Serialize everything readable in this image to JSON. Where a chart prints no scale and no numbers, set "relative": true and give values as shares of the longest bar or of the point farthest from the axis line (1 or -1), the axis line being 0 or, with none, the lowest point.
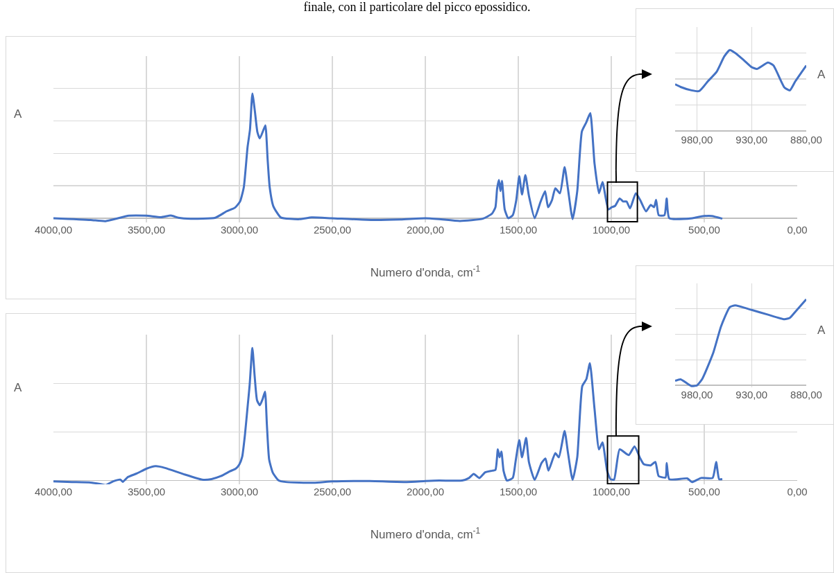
{
  "chart_data": [
    {
      "type": "line",
      "annotations": [
        "finale, con il particolare del picco epossidico."
      ],
      "xlabel": "Numero d'onda, cm$^{-1}$",
      "ylabel": "A",
      "xlim": [
        4000,
        0
      ],
      "xticks": [
        {
          "value": 4000,
          "label": "4000,00"
        },
        {
          "value": 3500,
          "label": "3500,00"
        },
        {
          "value": 3000,
          "label": "3000,00"
        },
        {
          "value": 2500,
          "label": "2500,00"
        },
        {
          "value": 2000,
          "label": "2000,00"
        },
        {
          "value": 1500,
          "label": "1500,00"
        },
        {
          "value": 1000,
          "label": "1000,00"
        },
        {
          "value": 500,
          "label": "500,00"
        },
        {
          "value": 0,
          "label": "0,00"
        }
      ],
      "grid": true,
      "relative": true,
      "tick_labels": "x",
      "x": [
        4000,
        3800,
        3720,
        3594,
        3500,
        3421,
        3368,
        3328,
        3262,
        3129,
        3069,
        3023,
        2996,
        2976,
        2956,
        2943,
        2930,
        2916,
        2903,
        2890,
        2870,
        2860,
        2848,
        2837,
        2817,
        2777,
        2677,
        2611,
        2505,
        2292,
        2133,
        2000,
        1926,
        1814,
        1691,
        1641,
        1623,
        1614,
        1604,
        1596,
        1588,
        1573,
        1554,
        1530,
        1511,
        1495,
        1480,
        1462,
        1443,
        1412,
        1381,
        1356,
        1340,
        1319,
        1301,
        1276,
        1251,
        1233,
        1208,
        1183,
        1158,
        1134,
        1113,
        1090,
        1066,
        1047,
        1016,
        998,
        980,
        955,
        936,
        918,
        899,
        868,
        844,
        813,
        788,
        770,
        759,
        745,
        714,
        702,
        688,
        564,
        515,
        460,
        403
      ],
      "series": [
        {
          "color": "#4472c4",
          "values": [
            0,
            -0.014,
            -0.024,
            0.02,
            0.02,
            0.008,
            0.022,
            0.004,
            -0.004,
            0.004,
            0.055,
            0.085,
            0.135,
            0.25,
            0.57,
            0.71,
            1,
            0.85,
            0.69,
            0.64,
            0.71,
            0.745,
            0.47,
            0.25,
            0.095,
            0.006,
            -0.008,
            0.006,
            0,
            -0.014,
            -0.01,
            0,
            -0.007,
            -0.022,
            -0.004,
            0.037,
            0.088,
            0.236,
            0.306,
            0.217,
            0.3,
            0.07,
            0,
            0.024,
            0.144,
            0.337,
            0.19,
            0.346,
            0.18,
            0,
            0.129,
            0.217,
            0.088,
            0.144,
            0.24,
            0.2,
            0.41,
            0.236,
            -0.007,
            0.217,
            0.696,
            0.77,
            0.843,
            0.438,
            0.2,
            0.29,
            0.07,
            0.088,
            0.098,
            0.158,
            0.134,
            0.134,
            0.079,
            0.2,
            0.144,
            0.055,
            0.107,
            0.088,
            0.147,
            0.024,
            0.024,
            0.158,
            0,
            0,
            0.015,
            0.018,
            -0.004
          ]
        }
      ]
    },
    {
      "type": "line",
      "ylabel": "A",
      "xlim": [
        1000,
        880
      ],
      "xticks": [
        {
          "value": 980,
          "label": "980,00"
        },
        {
          "value": 930,
          "label": "930,00"
        },
        {
          "value": 880,
          "label": "880,00"
        }
      ],
      "grid": true,
      "relative": true,
      "tick_labels": "x",
      "x": [
        1000,
        995,
        985,
        978,
        970,
        962,
        955,
        950,
        945,
        937,
        930,
        925,
        915,
        910,
        900,
        895,
        890,
        880
      ],
      "series": [
        {
          "color": "#4472c4",
          "values": [
            0.578,
            0.545,
            0.503,
            0.494,
            0.615,
            0.732,
            0.922,
            1,
            0.964,
            0.874,
            0.79,
            0.768,
            0.846,
            0.81,
            0.539,
            0.503,
            0.615,
            0.81
          ]
        }
      ]
    },
    {
      "type": "line",
      "xlabel": "Numero d'onda, cm$^{-1}$",
      "ylabel": "A",
      "xlim": [
        4000,
        0
      ],
      "xticks": [
        {
          "value": 4000,
          "label": "4000,00"
        },
        {
          "value": 3500,
          "label": "3500,00"
        },
        {
          "value": 3000,
          "label": "3000,00"
        },
        {
          "value": 2500,
          "label": "2500,00"
        },
        {
          "value": 2000,
          "label": "2000,00"
        },
        {
          "value": 1500,
          "label": "1500,00"
        },
        {
          "value": 1000,
          "label": "1000,00"
        },
        {
          "value": 500,
          "label": "500,00"
        },
        {
          "value": 0,
          "label": "0,00"
        }
      ],
      "grid": true,
      "relative": true,
      "tick_labels": "x",
      "x": [
        4000,
        3900,
        3800,
        3750,
        3720,
        3680,
        3640,
        3627,
        3600,
        3550,
        3500,
        3450,
        3400,
        3300,
        3200,
        3150,
        3100,
        3050,
        3020,
        3000,
        2985,
        2970,
        2955,
        2945,
        2930,
        2918,
        2905,
        2890,
        2875,
        2862,
        2852,
        2840,
        2820,
        2790,
        2750,
        2600,
        2500,
        2300,
        2100,
        2000,
        1926,
        1802,
        1765,
        1740,
        1709,
        1678,
        1641,
        1623,
        1610,
        1601,
        1591,
        1579,
        1561,
        1530,
        1515,
        1495,
        1480,
        1458,
        1443,
        1412,
        1375,
        1354,
        1338,
        1301,
        1282,
        1251,
        1233,
        1208,
        1183,
        1156,
        1134,
        1115,
        1090,
        1066,
        1047,
        1022,
        1004,
        985,
        955,
        906,
        875,
        844,
        825,
        788,
        763,
        745,
        708,
        702,
        688,
        591,
        566,
        517,
        455,
        436,
        420,
        403
      ],
      "series": [
        {
          "color": "#4472c4",
          "values": [
            -0.007,
            -0.011,
            -0.015,
            -0.026,
            -0.035,
            -0.007,
            0.007,
            -0.01,
            0.026,
            0.054,
            0.089,
            0.108,
            0.095,
            0.048,
            0.007,
            0.011,
            0.033,
            0.07,
            0.089,
            0.122,
            0.178,
            0.345,
            0.568,
            0.716,
            1,
            0.79,
            0.605,
            0.568,
            0.614,
            0.67,
            0.42,
            0.16,
            0.058,
            0.002,
            -0.011,
            -0.017,
            -0.007,
            -0.004,
            -0.011,
            -0.004,
            0,
            0,
            0.019,
            0.05,
            0.019,
            0.062,
            0.074,
            0.08,
            0.235,
            0.175,
            0.218,
            0.071,
            0,
            0.019,
            0.14,
            0.305,
            0.175,
            0.322,
            0.14,
            0.005,
            0.132,
            0.166,
            0.074,
            0.206,
            0.175,
            0.374,
            0.21,
            0.005,
            0.175,
            0.712,
            0.764,
            0.885,
            0.539,
            0.235,
            0.287,
            0.071,
            0.01,
            0.007,
            0.235,
            0.192,
            0.258,
            0.166,
            0.123,
            0.114,
            0.14,
            0.033,
            0.023,
            0.132,
            0.01,
            0.016,
            -0.012,
            0.019,
            0.019,
            0.14,
            0.01,
            0.01
          ]
        }
      ]
    },
    {
      "type": "line",
      "ylabel": "A",
      "xlim": [
        1000,
        880
      ],
      "xticks": [
        {
          "value": 980,
          "label": "980,00"
        },
        {
          "value": 930,
          "label": "930,00"
        },
        {
          "value": 880,
          "label": "880,00"
        }
      ],
      "grid": true,
      "relative": true,
      "tick_labels": "x",
      "x": [
        1000,
        995,
        985,
        980,
        975,
        965,
        958,
        950,
        945,
        930,
        915,
        900,
        895,
        890,
        880
      ],
      "series": [
        {
          "color": "#4472c4",
          "values": [
            0.053,
            0.071,
            -0.008,
            0,
            0.079,
            0.382,
            0.684,
            0.908,
            0.929,
            0.876,
            0.821,
            0.768,
            0.784,
            0.855,
            1
          ]
        }
      ]
    }
  ]
}
